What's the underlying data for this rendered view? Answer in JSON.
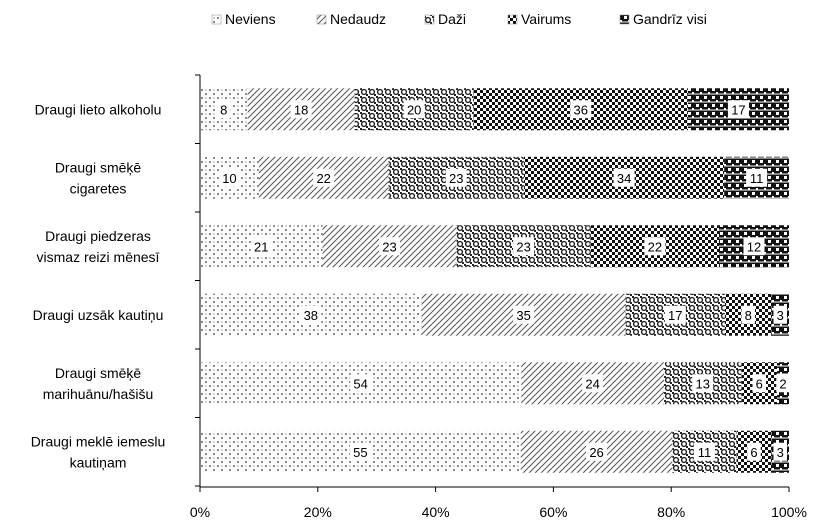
{
  "chart_data": {
    "type": "bar",
    "orientation": "horizontal",
    "stacked": true,
    "percent": true,
    "categories": [
      [
        "Draugi lieto alkoholu"
      ],
      [
        "Draugi smēķē",
        "cigaretes"
      ],
      [
        "Draugi piedzeras",
        "vismaz reizi mēnesī"
      ],
      [
        "Draugi uzsāk kautiņu"
      ],
      [
        "Draugi smēķē",
        "marihuānu/hašišu"
      ],
      [
        "Draugi meklē iemeslu",
        "kautiņam"
      ]
    ],
    "series": [
      {
        "name": "Neviens",
        "values": [
          8,
          10,
          21,
          38,
          54,
          55
        ]
      },
      {
        "name": "Nedaudz",
        "values": [
          18,
          22,
          23,
          35,
          24,
          26
        ]
      },
      {
        "name": "Daži",
        "values": [
          20,
          23,
          23,
          17,
          13,
          11
        ]
      },
      {
        "name": "Vairums",
        "values": [
          36,
          34,
          22,
          8,
          6,
          6
        ]
      },
      {
        "name": "Gandrīz visi",
        "values": [
          17,
          11,
          12,
          3,
          2,
          3
        ]
      }
    ],
    "xlim": [
      0,
      100
    ],
    "xticks": [
      "0%",
      "20%",
      "40%",
      "60%",
      "80%",
      "100%"
    ],
    "legend_position": "top",
    "grid": false
  }
}
